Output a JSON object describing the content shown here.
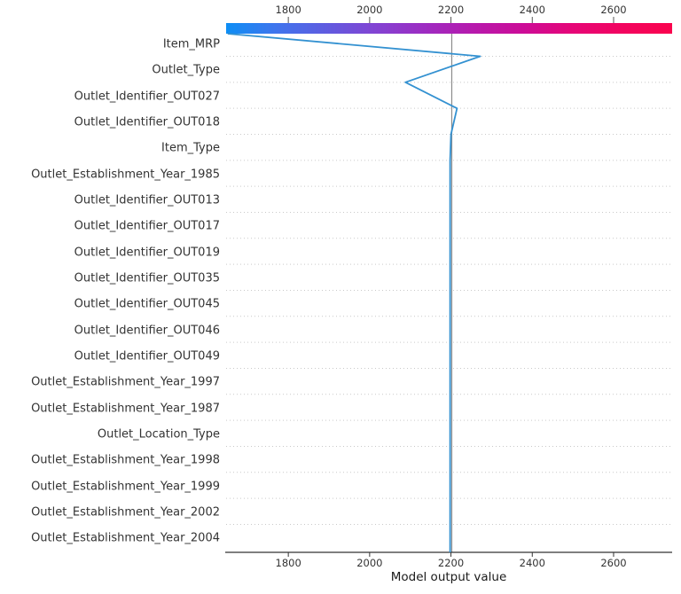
{
  "chart_data": {
    "type": "line",
    "subtype": "shap-decision-plot",
    "title": "",
    "xlabel": "Model output value",
    "ylabel": "",
    "x_ticks": [
      1800,
      2000,
      2200,
      2400,
      2600
    ],
    "xlim": [
      1647,
      2744
    ],
    "grid": "dotted-horizontal-per-feature",
    "legend": "none",
    "base_value": 2202,
    "final_output": 1651,
    "features": [
      "Item_MRP",
      "Outlet_Type",
      "Outlet_Identifier_OUT027",
      "Outlet_Identifier_OUT018",
      "Item_Type",
      "Outlet_Establishment_Year_1985",
      "Outlet_Identifier_OUT013",
      "Outlet_Identifier_OUT017",
      "Outlet_Identifier_OUT019",
      "Outlet_Identifier_OUT035",
      "Outlet_Identifier_OUT045",
      "Outlet_Identifier_OUT046",
      "Outlet_Identifier_OUT049",
      "Outlet_Establishment_Year_1997",
      "Outlet_Establishment_Year_1987",
      "Outlet_Location_Type",
      "Outlet_Establishment_Year_1998",
      "Outlet_Establishment_Year_1999",
      "Outlet_Establishment_Year_2002",
      "Outlet_Establishment_Year_2004"
    ],
    "path_points": [
      {
        "row": "top",
        "value": 1651
      },
      {
        "row": "Item_MRP",
        "value": 2272
      },
      {
        "row": "Outlet_Type",
        "value": 2088
      },
      {
        "row": "Outlet_Identifier_OUT027",
        "value": 2215
      },
      {
        "row": "Outlet_Identifier_OUT018",
        "value": 2200
      },
      {
        "row": "Item_Type",
        "value": 2198
      },
      {
        "row": "bottom",
        "value": 2198
      }
    ],
    "colorbar": {
      "orientation": "horizontal",
      "tick_values": [
        1800,
        2000,
        2200,
        2400,
        2600
      ],
      "gradient_colors": [
        "#0d8ef5",
        "#3f75ed",
        "#5f5ce0",
        "#8244d3",
        "#9d2cc2",
        "#b719ac",
        "#cc0c97",
        "#e60677",
        "#f2045f",
        "#fa034e"
      ]
    },
    "colors": {
      "path_line": "#3391d1",
      "base_line": "#8c8c8c",
      "gridline": "#c9c9c9",
      "axis": "#333333",
      "text": "#333333"
    }
  }
}
